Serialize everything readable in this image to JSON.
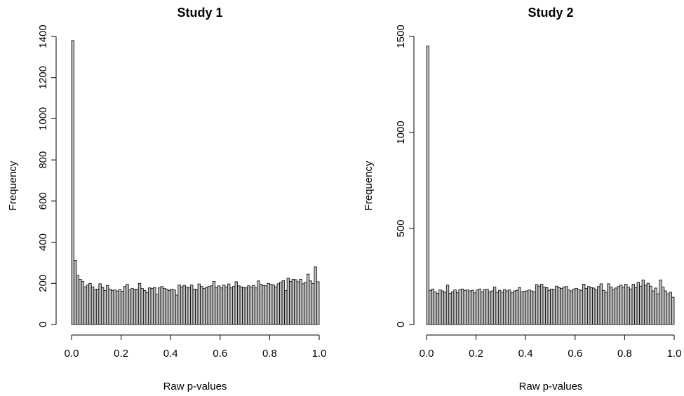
{
  "chart_data": [
    {
      "type": "bar",
      "title": "Study 1",
      "xlabel": "Raw p-values",
      "ylabel": "Frequency",
      "xlim": [
        0,
        1
      ],
      "ylim": [
        0,
        1400
      ],
      "xticks": [
        "0.0",
        "0.2",
        "0.4",
        "0.6",
        "0.8",
        "1.0"
      ],
      "yticks": [
        "0",
        "200",
        "400",
        "600",
        "800",
        "1000",
        "1200",
        "1400"
      ],
      "bin_width": 0.01,
      "values": [
        1380,
        312,
        238,
        220,
        210,
        183,
        192,
        200,
        183,
        170,
        172,
        198,
        180,
        165,
        190,
        172,
        165,
        168,
        163,
        170,
        162,
        185,
        195,
        168,
        175,
        170,
        172,
        200,
        175,
        165,
        155,
        178,
        175,
        180,
        148,
        178,
        185,
        175,
        172,
        166,
        172,
        168,
        143,
        192,
        183,
        190,
        182,
        178,
        192,
        172,
        170,
        197,
        185,
        175,
        180,
        185,
        188,
        210,
        180,
        188,
        178,
        192,
        183,
        197,
        178,
        185,
        208,
        188,
        183,
        180,
        178,
        188,
        182,
        190,
        178,
        212,
        195,
        190,
        188,
        200,
        195,
        192,
        183,
        198,
        205,
        213,
        165,
        225,
        210,
        220,
        218,
        208,
        220,
        198,
        205,
        245,
        212,
        200,
        280,
        208
      ]
    },
    {
      "type": "bar",
      "title": "Study 2",
      "xlabel": "Raw p-values",
      "ylabel": "Frequency",
      "xlim": [
        0,
        1
      ],
      "ylim": [
        0,
        1500
      ],
      "xticks": [
        "0.0",
        "0.2",
        "0.4",
        "0.6",
        "0.8",
        "1.0"
      ],
      "yticks": [
        "0",
        "500",
        "1000",
        "1500"
      ],
      "bin_width": 0.01,
      "values": [
        1450,
        178,
        185,
        170,
        162,
        180,
        175,
        168,
        205,
        162,
        170,
        180,
        165,
        182,
        185,
        178,
        180,
        175,
        178,
        165,
        180,
        185,
        170,
        182,
        183,
        170,
        175,
        195,
        168,
        178,
        168,
        182,
        175,
        180,
        165,
        175,
        178,
        192,
        170,
        173,
        175,
        180,
        175,
        170,
        208,
        200,
        210,
        195,
        192,
        178,
        185,
        182,
        200,
        192,
        188,
        195,
        198,
        180,
        175,
        185,
        188,
        182,
        178,
        210,
        188,
        198,
        192,
        190,
        180,
        198,
        212,
        178,
        168,
        212,
        195,
        182,
        190,
        198,
        205,
        195,
        210,
        195,
        185,
        210,
        192,
        220,
        200,
        232,
        205,
        215,
        200,
        175,
        190,
        160,
        232,
        195,
        175,
        160,
        168,
        142
      ]
    }
  ]
}
